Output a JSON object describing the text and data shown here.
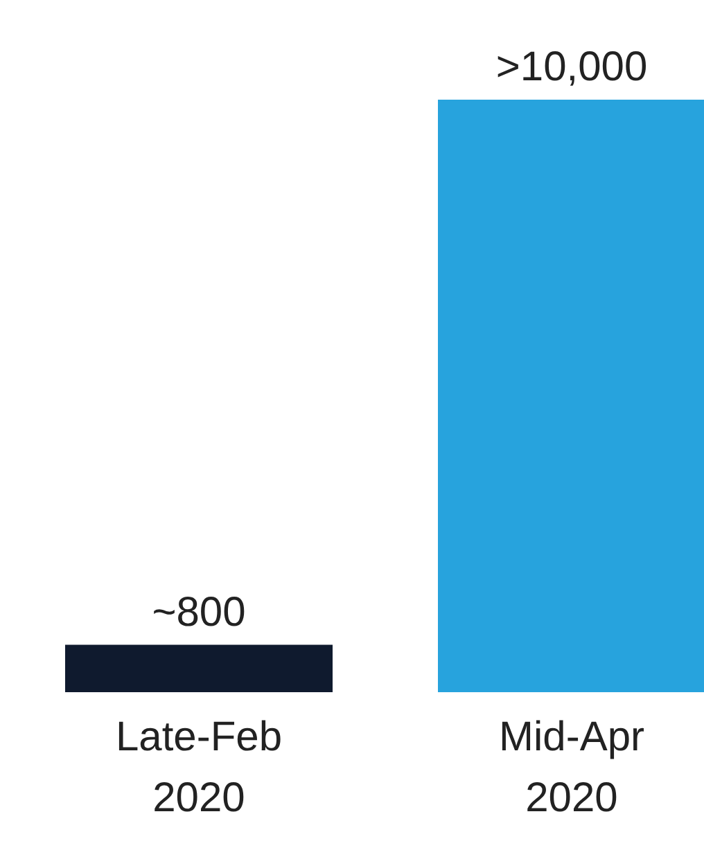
{
  "chart_data": {
    "type": "bar",
    "categories": [
      "Late-Feb 2020",
      "Mid-Apr 2020"
    ],
    "values": [
      800,
      10000
    ],
    "colors": [
      "#0f1a2e",
      "#27a3dd"
    ],
    "value_labels": [
      "~800",
      ">10,000"
    ],
    "grid": false,
    "legend": false
  }
}
